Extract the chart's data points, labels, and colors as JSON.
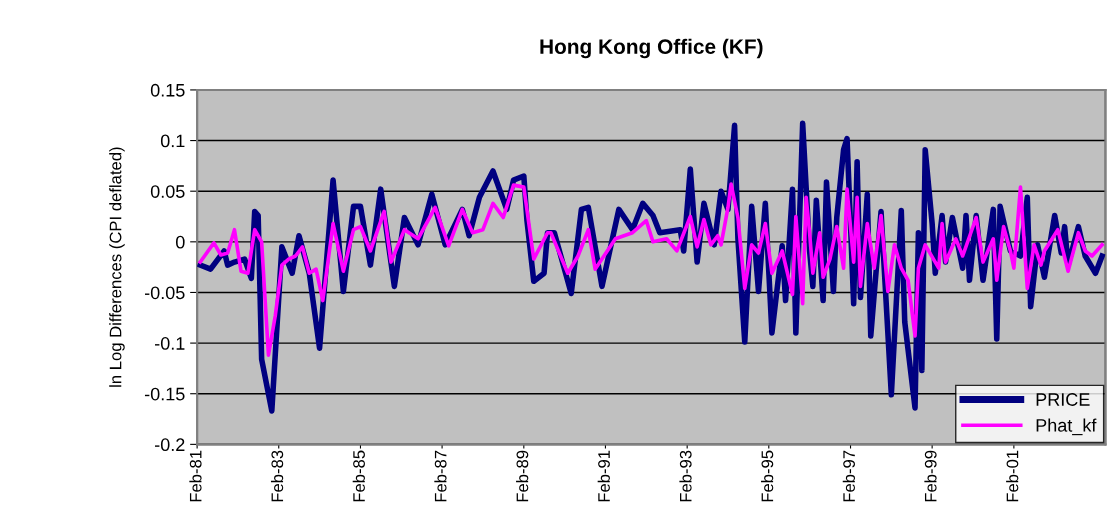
{
  "chart_data": {
    "type": "line",
    "title": "Hong Kong Office (KF)",
    "ylabel": "ln Log Differences (CPI deflated)",
    "xlim": [
      "1981-02",
      "2003-05"
    ],
    "ylim": [
      -0.2,
      0.15
    ],
    "xticks": [
      {
        "value": "1981-02",
        "label": "Feb-81"
      },
      {
        "value": "1983-02",
        "label": "Feb-83"
      },
      {
        "value": "1985-02",
        "label": "Feb-85"
      },
      {
        "value": "1987-02",
        "label": "Feb-87"
      },
      {
        "value": "1989-02",
        "label": "Feb-89"
      },
      {
        "value": "1991-02",
        "label": "Feb-91"
      },
      {
        "value": "1993-02",
        "label": "Feb-93"
      },
      {
        "value": "1995-02",
        "label": "Feb-95"
      },
      {
        "value": "1997-02",
        "label": "Feb-97"
      },
      {
        "value": "1999-02",
        "label": "Feb-99"
      },
      {
        "value": "2001-02",
        "label": "Feb-01"
      }
    ],
    "yticks": [
      -0.2,
      -0.15,
      -0.1,
      -0.05,
      0,
      0.05,
      0.1,
      0.15
    ],
    "grid": "y",
    "legend": "bottom right",
    "marker": "none",
    "line_style": "solid",
    "series": [
      {
        "name": "PRICE",
        "color": "#000080",
        "x": [
          "1981-03",
          "1981-06",
          "1981-10",
          "1981-11",
          "1982-01",
          "1982-04",
          "1982-06",
          "1982-07",
          "1982-08",
          "1982-09",
          "1982-12",
          "1983-03",
          "1983-06",
          "1983-08",
          "1983-11",
          "1984-02",
          "1984-06",
          "1984-09",
          "1984-12",
          "1985-02",
          "1985-05",
          "1985-08",
          "1985-12",
          "1986-03",
          "1986-07",
          "1986-11",
          "1987-03",
          "1987-08",
          "1987-10",
          "1988-01",
          "1988-05",
          "1988-09",
          "1988-11",
          "1989-02",
          "1989-03",
          "1989-05",
          "1989-08",
          "1989-09",
          "1989-11",
          "1990-04",
          "1990-07",
          "1990-09",
          "1991-01",
          "1991-06",
          "1991-10",
          "1992-01",
          "1992-04",
          "1992-06",
          "1992-12",
          "1993-01",
          "1993-03",
          "1993-05",
          "1993-07",
          "1993-10",
          "1993-12",
          "1994-02",
          "1994-04",
          "1994-05",
          "1994-07",
          "1994-09",
          "1994-11",
          "1995-01",
          "1995-03",
          "1995-06",
          "1995-07",
          "1995-09",
          "1995-10",
          "1995-12",
          "1996-02",
          "1996-03",
          "1996-04",
          "1996-06",
          "1996-07",
          "1996-09",
          "1996-10",
          "1996-12",
          "1997-01",
          "1997-03",
          "1997-04",
          "1997-05",
          "1997-07",
          "1997-08",
          "1997-11",
          "1998-02",
          "1998-05",
          "1998-06",
          "1998-09",
          "1998-10",
          "1998-11",
          "1998-12",
          "1999-02",
          "1999-03",
          "1999-05",
          "1999-06",
          "1999-08",
          "1999-11",
          "1999-12",
          "2000-01",
          "2000-03",
          "2000-05",
          "2000-08",
          "2000-09",
          "2000-10",
          "2001-01",
          "2001-04",
          "2001-06",
          "2001-07",
          "2001-09",
          "2001-11",
          "2002-02",
          "2002-04",
          "2002-05",
          "2002-06",
          "2002-09",
          "2002-11",
          "2003-02",
          "2003-04"
        ],
        "values": [
          -0.023,
          -0.027,
          -0.009,
          -0.023,
          -0.02,
          -0.017,
          -0.036,
          0.03,
          0.026,
          -0.116,
          -0.167,
          -0.005,
          -0.031,
          0.006,
          -0.031,
          -0.105,
          0.061,
          -0.049,
          0.035,
          0.035,
          -0.023,
          0.052,
          -0.044,
          0.024,
          -0.003,
          0.047,
          -0.003,
          0.032,
          0.006,
          0.044,
          0.07,
          0.032,
          0.061,
          0.065,
          0.021,
          -0.039,
          -0.031,
          0.009,
          0.009,
          -0.051,
          0.032,
          0.034,
          -0.044,
          0.032,
          0.012,
          0.038,
          0.026,
          0.009,
          0.012,
          -0.009,
          0.072,
          -0.02,
          0.038,
          -0.003,
          0.05,
          0.032,
          0.115,
          0.003,
          -0.099,
          0.035,
          -0.049,
          0.038,
          -0.09,
          -0.004,
          -0.058,
          0.052,
          -0.09,
          0.117,
          -0.009,
          -0.044,
          0.041,
          -0.058,
          0.059,
          -0.049,
          0.024,
          0.091,
          0.102,
          -0.061,
          0.079,
          -0.055,
          0.047,
          -0.093,
          0.03,
          -0.151,
          0.031,
          -0.079,
          -0.164,
          0.009,
          -0.127,
          0.091,
          0.018,
          -0.031,
          0.026,
          -0.02,
          0.024,
          -0.026,
          0.026,
          -0.038,
          0.026,
          -0.038,
          0.032,
          -0.096,
          0.035,
          -0.009,
          -0.014,
          0.044,
          -0.064,
          -0.003,
          -0.035,
          0.026,
          -0.011,
          0.015,
          -0.023,
          0.015,
          -0.014,
          -0.031,
          -0.014
        ]
      },
      {
        "name": "Phat_kf",
        "color": "#ff00ff",
        "x": [
          "1981-03",
          "1981-07",
          "1981-09",
          "1981-11",
          "1982-01",
          "1982-03",
          "1982-05",
          "1982-07",
          "1982-09",
          "1982-11",
          "1983-01",
          "1983-03",
          "1983-05",
          "1983-07",
          "1983-09",
          "1983-11",
          "1984-01",
          "1984-03",
          "1984-06",
          "1984-09",
          "1984-12",
          "1985-02",
          "1985-05",
          "1985-09",
          "1985-11",
          "1986-03",
          "1986-07",
          "1986-12",
          "1987-04",
          "1987-08",
          "1987-11",
          "1988-02",
          "1988-05",
          "1988-08",
          "1988-11",
          "1989-02",
          "1989-05",
          "1989-09",
          "1989-10",
          "1990-03",
          "1990-06",
          "1990-09",
          "1990-11",
          "1991-05",
          "1991-10",
          "1992-02",
          "1992-04",
          "1992-08",
          "1992-11",
          "1993-03",
          "1993-05",
          "1993-07",
          "1993-09",
          "1993-11",
          "1993-12",
          "1994-02",
          "1994-03",
          "1994-05",
          "1994-07",
          "1994-09",
          "1994-11",
          "1995-01",
          "1995-03",
          "1995-06",
          "1995-09",
          "1995-10",
          "1995-12",
          "1996-01",
          "1996-02",
          "1996-03",
          "1996-05",
          "1996-06",
          "1996-08",
          "1996-10",
          "1996-12",
          "1997-01",
          "1997-03",
          "1997-04",
          "1997-05",
          "1997-07",
          "1997-09",
          "1997-11",
          "1998-01",
          "1998-03",
          "1998-05",
          "1998-07",
          "1998-09",
          "1998-10",
          "1998-12",
          "1999-01",
          "1999-04",
          "1999-05",
          "1999-06",
          "1999-09",
          "1999-11",
          "2000-03",
          "2000-05",
          "2000-08",
          "2000-09",
          "2000-11",
          "2001-01",
          "2001-02",
          "2001-04",
          "2001-06",
          "2001-08",
          "2001-10",
          "2001-11",
          "2002-03",
          "2002-06",
          "2002-09",
          "2002-11",
          "2003-01",
          "2003-04"
        ],
        "values": [
          -0.02,
          -0.001,
          -0.013,
          -0.011,
          0.012,
          -0.029,
          -0.031,
          0.012,
          0.0,
          -0.112,
          -0.073,
          -0.023,
          -0.017,
          -0.014,
          -0.005,
          -0.031,
          -0.027,
          -0.058,
          0.018,
          -0.029,
          0.012,
          0.015,
          -0.009,
          0.03,
          -0.02,
          0.012,
          0.003,
          0.034,
          -0.004,
          0.032,
          0.009,
          0.012,
          0.038,
          0.024,
          0.056,
          0.054,
          -0.017,
          0.009,
          0.009,
          -0.031,
          -0.014,
          0.012,
          -0.027,
          0.003,
          0.009,
          0.021,
          0.0,
          0.003,
          -0.009,
          0.025,
          -0.005,
          0.022,
          -0.003,
          0.006,
          -0.003,
          0.034,
          0.057,
          0.024,
          -0.046,
          -0.003,
          -0.011,
          0.018,
          -0.031,
          -0.009,
          -0.052,
          0.025,
          -0.061,
          0.044,
          0.009,
          -0.031,
          0.009,
          -0.035,
          -0.017,
          0.015,
          -0.026,
          0.052,
          -0.02,
          0.044,
          -0.044,
          0.018,
          -0.026,
          0.026,
          -0.049,
          -0.003,
          -0.026,
          -0.038,
          -0.093,
          -0.026,
          -0.003,
          -0.009,
          -0.026,
          0.018,
          -0.02,
          0.003,
          -0.014,
          0.024,
          -0.02,
          0.003,
          -0.038,
          0.015,
          -0.009,
          -0.026,
          0.054,
          -0.046,
          -0.003,
          -0.023,
          -0.009,
          0.012,
          -0.029,
          0.009,
          -0.009,
          -0.014,
          -0.003
        ]
      }
    ]
  }
}
